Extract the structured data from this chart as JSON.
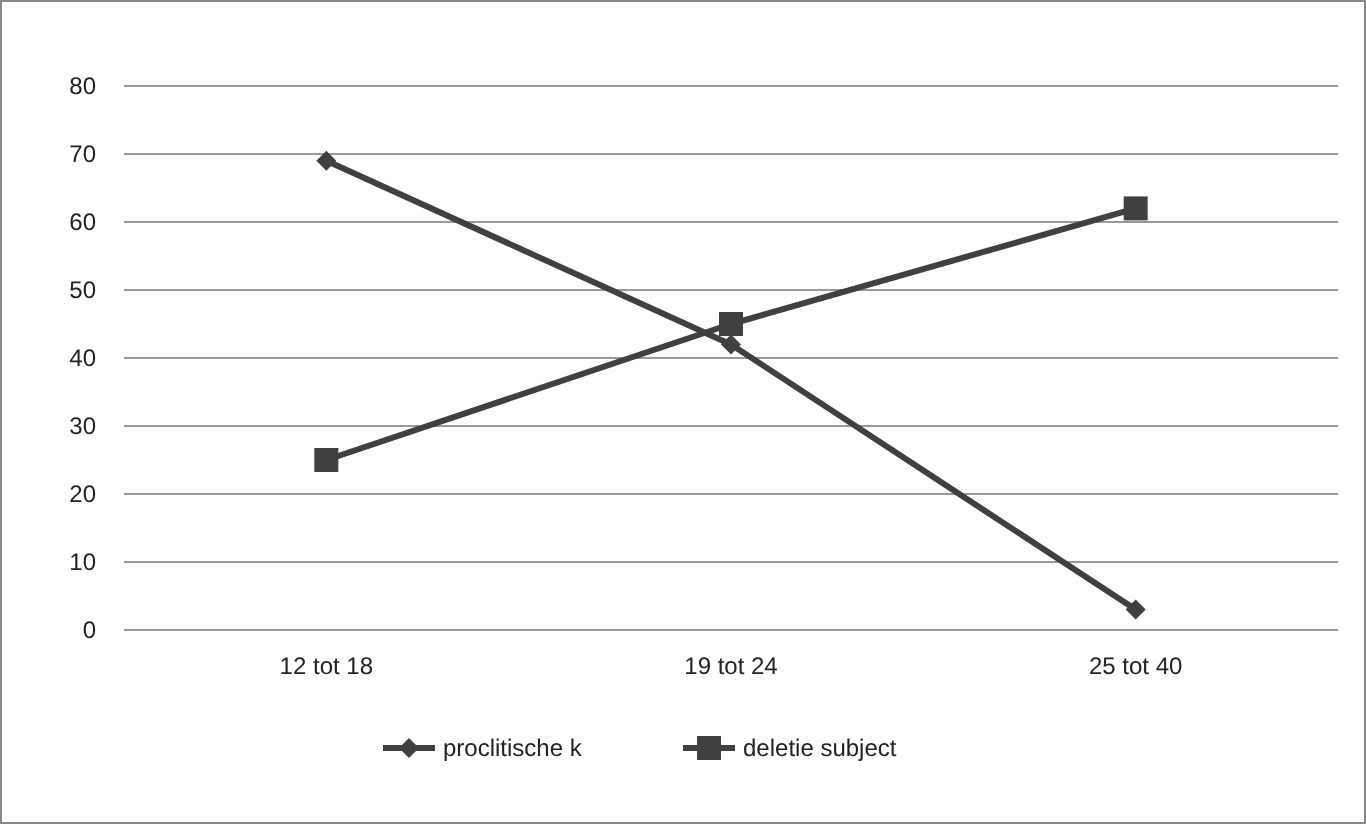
{
  "chart_data": {
    "type": "line",
    "categories": [
      "12 tot 18",
      "19 tot 24",
      "25 tot 40"
    ],
    "series": [
      {
        "name": "proclitische k",
        "color": "#404040",
        "values": [
          69,
          42,
          3
        ],
        "marker": "diamond"
      },
      {
        "name": "deletie subject",
        "color": "#404040",
        "values": [
          25,
          45,
          62
        ],
        "marker": "square"
      }
    ],
    "ylim": [
      0,
      80
    ],
    "yticks": [
      0,
      10,
      20,
      30,
      40,
      50,
      60,
      70,
      80
    ],
    "grid": "y",
    "legend": "bottom",
    "line_style": "solid"
  }
}
